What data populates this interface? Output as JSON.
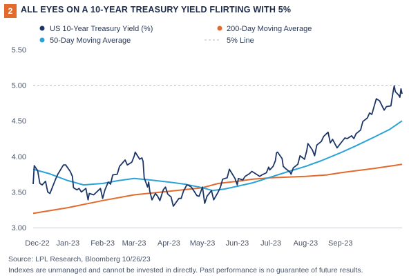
{
  "header": {
    "badge": "2",
    "title": "ALL EYES ON A 10-YEAR TREASURY YIELD FLIRTING WITH 5%"
  },
  "footer": {
    "source": "Source: LPL Research, Bloomberg  10/26/23",
    "disclaimer": "Indexes are unmanaged and cannot be invested in directly. Past performance is no guarantee of future results."
  },
  "colors": {
    "yield": "#1b3566",
    "ma200": "#e26a2c",
    "ma50": "#2aa2d8",
    "line5": "#b5b9bf",
    "badge": "#e26a2c"
  },
  "chart_data": {
    "type": "line",
    "title": "ALL EYES ON A 10-YEAR TREASURY YIELD FLIRTING WITH 5%",
    "xlabel": "",
    "ylabel": "",
    "x_ticks": [
      "Dec-22",
      "Jan-23",
      "Feb-23",
      "Mar-23",
      "Apr-23",
      "May-23",
      "Jun-23",
      "Jul-23",
      "Aug-23",
      "Sep-23"
    ],
    "y_ticks": [
      "3.00",
      "3.50",
      "4.00",
      "4.50",
      "5.00",
      "5.50"
    ],
    "ylim": [
      3.0,
      5.5
    ],
    "xlim": [
      "2022-12-01",
      "2023-10-26"
    ],
    "grid": false,
    "legend_position": "top",
    "series": [
      {
        "name": "US 10-Year Treasury Yield (%)",
        "style": "solid",
        "color": "#1b3566",
        "points": [
          [
            "2022-12-01",
            3.61
          ],
          [
            "2022-12-02",
            3.87
          ],
          [
            "2022-12-05",
            3.8
          ],
          [
            "2022-12-07",
            3.62
          ],
          [
            "2022-12-09",
            3.6
          ],
          [
            "2022-12-12",
            3.65
          ],
          [
            "2022-12-14",
            3.5
          ],
          [
            "2022-12-16",
            3.48
          ],
          [
            "2022-12-19",
            3.6
          ],
          [
            "2022-12-21",
            3.68
          ],
          [
            "2022-12-23",
            3.75
          ],
          [
            "2022-12-28",
            3.88
          ],
          [
            "2022-12-30",
            3.88
          ],
          [
            "2023-01-03",
            3.79
          ],
          [
            "2023-01-05",
            3.72
          ],
          [
            "2023-01-06",
            3.56
          ],
          [
            "2023-01-09",
            3.53
          ],
          [
            "2023-01-11",
            3.55
          ],
          [
            "2023-01-13",
            3.5
          ],
          [
            "2023-01-17",
            3.55
          ],
          [
            "2023-01-19",
            3.39
          ],
          [
            "2023-01-20",
            3.48
          ],
          [
            "2023-01-24",
            3.46
          ],
          [
            "2023-01-26",
            3.49
          ],
          [
            "2023-01-30",
            3.55
          ],
          [
            "2023-02-01",
            3.41
          ],
          [
            "2023-02-03",
            3.53
          ],
          [
            "2023-02-06",
            3.64
          ],
          [
            "2023-02-08",
            3.61
          ],
          [
            "2023-02-10",
            3.74
          ],
          [
            "2023-02-14",
            3.75
          ],
          [
            "2023-02-16",
            3.86
          ],
          [
            "2023-02-21",
            3.95
          ],
          [
            "2023-02-23",
            3.88
          ],
          [
            "2023-02-27",
            3.92
          ],
          [
            "2023-03-01",
            4.0
          ],
          [
            "2023-03-02",
            4.06
          ],
          [
            "2023-03-06",
            3.96
          ],
          [
            "2023-03-08",
            3.98
          ],
          [
            "2023-03-09",
            3.93
          ],
          [
            "2023-03-10",
            3.7
          ],
          [
            "2023-03-13",
            3.57
          ],
          [
            "2023-03-14",
            3.64
          ],
          [
            "2023-03-15",
            3.51
          ],
          [
            "2023-03-17",
            3.39
          ],
          [
            "2023-03-20",
            3.48
          ],
          [
            "2023-03-22",
            3.44
          ],
          [
            "2023-03-24",
            3.38
          ],
          [
            "2023-03-27",
            3.53
          ],
          [
            "2023-03-29",
            3.57
          ],
          [
            "2023-03-31",
            3.47
          ],
          [
            "2023-04-03",
            3.43
          ],
          [
            "2023-04-05",
            3.3
          ],
          [
            "2023-04-10",
            3.41
          ],
          [
            "2023-04-12",
            3.41
          ],
          [
            "2023-04-14",
            3.51
          ],
          [
            "2023-04-17",
            3.6
          ],
          [
            "2023-04-19",
            3.59
          ],
          [
            "2023-04-21",
            3.57
          ],
          [
            "2023-04-24",
            3.5
          ],
          [
            "2023-04-26",
            3.45
          ],
          [
            "2023-04-28",
            3.44
          ],
          [
            "2023-05-01",
            3.57
          ],
          [
            "2023-05-03",
            3.34
          ],
          [
            "2023-05-05",
            3.44
          ],
          [
            "2023-05-09",
            3.52
          ],
          [
            "2023-05-11",
            3.39
          ],
          [
            "2023-05-15",
            3.5
          ],
          [
            "2023-05-17",
            3.57
          ],
          [
            "2023-05-19",
            3.68
          ],
          [
            "2023-05-23",
            3.7
          ],
          [
            "2023-05-25",
            3.82
          ],
          [
            "2023-05-30",
            3.69
          ],
          [
            "2023-06-01",
            3.6
          ],
          [
            "2023-06-02",
            3.69
          ],
          [
            "2023-06-06",
            3.67
          ],
          [
            "2023-06-08",
            3.72
          ],
          [
            "2023-06-12",
            3.76
          ],
          [
            "2023-06-14",
            3.79
          ],
          [
            "2023-06-16",
            3.77
          ],
          [
            "2023-06-21",
            3.72
          ],
          [
            "2023-06-23",
            3.74
          ],
          [
            "2023-06-27",
            3.77
          ],
          [
            "2023-06-29",
            3.85
          ],
          [
            "2023-06-30",
            3.81
          ],
          [
            "2023-07-03",
            3.86
          ],
          [
            "2023-07-05",
            3.94
          ],
          [
            "2023-07-06",
            4.05
          ],
          [
            "2023-07-07",
            4.06
          ],
          [
            "2023-07-11",
            3.97
          ],
          [
            "2023-07-12",
            3.86
          ],
          [
            "2023-07-14",
            3.83
          ],
          [
            "2023-07-18",
            3.78
          ],
          [
            "2023-07-19",
            3.75
          ],
          [
            "2023-07-21",
            3.84
          ],
          [
            "2023-07-25",
            3.89
          ],
          [
            "2023-07-27",
            4.01
          ],
          [
            "2023-07-31",
            3.96
          ],
          [
            "2023-08-02",
            4.08
          ],
          [
            "2023-08-03",
            4.18
          ],
          [
            "2023-08-07",
            4.09
          ],
          [
            "2023-08-09",
            4.01
          ],
          [
            "2023-08-11",
            4.16
          ],
          [
            "2023-08-15",
            4.21
          ],
          [
            "2023-08-17",
            4.28
          ],
          [
            "2023-08-21",
            4.34
          ],
          [
            "2023-08-23",
            4.19
          ],
          [
            "2023-08-25",
            4.24
          ],
          [
            "2023-08-29",
            4.12
          ],
          [
            "2023-09-01",
            4.18
          ],
          [
            "2023-09-05",
            4.26
          ],
          [
            "2023-09-07",
            4.25
          ],
          [
            "2023-09-11",
            4.29
          ],
          [
            "2023-09-13",
            4.25
          ],
          [
            "2023-09-15",
            4.32
          ],
          [
            "2023-09-19",
            4.37
          ],
          [
            "2023-09-21",
            4.49
          ],
          [
            "2023-09-25",
            4.54
          ],
          [
            "2023-09-27",
            4.61
          ],
          [
            "2023-09-29",
            4.59
          ],
          [
            "2023-10-03",
            4.81
          ],
          [
            "2023-10-06",
            4.78
          ],
          [
            "2023-10-10",
            4.65
          ],
          [
            "2023-10-12",
            4.7
          ],
          [
            "2023-10-16",
            4.71
          ],
          [
            "2023-10-18",
            4.91
          ],
          [
            "2023-10-19",
            4.99
          ],
          [
            "2023-10-20",
            4.91
          ],
          [
            "2023-10-23",
            4.86
          ],
          [
            "2023-10-24",
            4.83
          ],
          [
            "2023-10-25",
            4.95
          ],
          [
            "2023-10-26",
            4.88
          ]
        ]
      },
      {
        "name": "200-Day Moving Average",
        "style": "solid",
        "color": "#e26a2c",
        "points": [
          [
            "2022-12-01",
            3.2
          ],
          [
            "2023-01-01",
            3.28
          ],
          [
            "2023-02-01",
            3.38
          ],
          [
            "2023-03-01",
            3.46
          ],
          [
            "2023-04-01",
            3.51
          ],
          [
            "2023-05-01",
            3.56
          ],
          [
            "2023-05-15",
            3.62
          ],
          [
            "2023-06-01",
            3.65
          ],
          [
            "2023-06-15",
            3.68
          ],
          [
            "2023-07-01",
            3.7
          ],
          [
            "2023-08-01",
            3.72
          ],
          [
            "2023-08-20",
            3.74
          ],
          [
            "2023-09-01",
            3.77
          ],
          [
            "2023-10-01",
            3.83
          ],
          [
            "2023-10-26",
            3.89
          ]
        ]
      },
      {
        "name": "50-Day Moving Average",
        "style": "solid",
        "color": "#2aa2d8",
        "points": [
          [
            "2022-12-01",
            3.82
          ],
          [
            "2022-12-15",
            3.76
          ],
          [
            "2023-01-01",
            3.66
          ],
          [
            "2023-01-15",
            3.6
          ],
          [
            "2023-02-01",
            3.62
          ],
          [
            "2023-02-15",
            3.66
          ],
          [
            "2023-03-01",
            3.69
          ],
          [
            "2023-03-15",
            3.67
          ],
          [
            "2023-04-01",
            3.64
          ],
          [
            "2023-04-15",
            3.61
          ],
          [
            "2023-05-01",
            3.56
          ],
          [
            "2023-05-10",
            3.52
          ],
          [
            "2023-05-20",
            3.54
          ],
          [
            "2023-06-01",
            3.58
          ],
          [
            "2023-06-15",
            3.63
          ],
          [
            "2023-07-01",
            3.71
          ],
          [
            "2023-07-15",
            3.78
          ],
          [
            "2023-08-01",
            3.86
          ],
          [
            "2023-08-15",
            3.94
          ],
          [
            "2023-09-01",
            4.05
          ],
          [
            "2023-09-15",
            4.15
          ],
          [
            "2023-10-01",
            4.27
          ],
          [
            "2023-10-15",
            4.38
          ],
          [
            "2023-10-26",
            4.5
          ]
        ]
      },
      {
        "name": "5% Line",
        "style": "dashed",
        "color": "#b5b9bf",
        "points": [
          [
            "2022-12-01",
            5.0
          ],
          [
            "2023-10-26",
            5.0
          ]
        ]
      }
    ]
  }
}
